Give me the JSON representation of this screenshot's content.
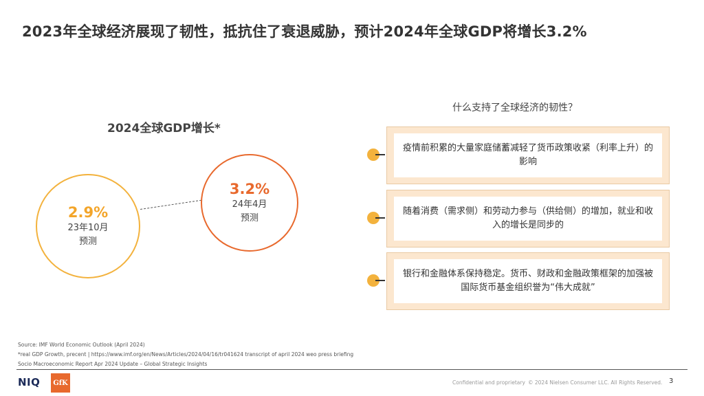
{
  "page": {
    "title": "2023年全球经济展现了韧性，抵抗住了衰退威胁，预计2024年全球GDP将增长3.2%"
  },
  "gdp_chart": {
    "title": "2024全球GDP增长*",
    "forecast_oct23": {
      "value": "2.9%",
      "label_line1": "23年10月",
      "label_line2": "预测"
    },
    "forecast_apr24": {
      "value": "3.2%",
      "label_line1": "24年4月",
      "label_line2": "预测"
    }
  },
  "resilience": {
    "title": "什么支持了全球经济的韧性？",
    "items": [
      {
        "text": "疫情前积累的大量家庭储蓄减轻了货币政策收紧（利率上升）的影响"
      },
      {
        "text": "随着消费（需求侧）和劳动力参与（供给侧）的增加，就业和收入的增长是同步的"
      },
      {
        "text": "银行和金融体系保持稳定。货币、财政和金融政策框架的加强被国际货币基金组织誉为“伟大成就”"
      }
    ]
  },
  "sources": {
    "line1": "Source: IMF World Economic Outlook (April 2024)",
    "line2": "*real GDP Growth, precent | https://www.imf.org/en/News/Articles/2024/04/16/tr041624 transcript of april 2024 weo press briefing",
    "line3": "Socio Macroeconomic Report Apr 2024 Update – Global Strategic Insights"
  },
  "footer": {
    "logo_niq": "NIQ",
    "logo_gfk": "GfK",
    "confidential": "Confidential and proprietary",
    "copyright": "© 2024 Nielsen Consumer LLC. All Rights Reserved.",
    "page_number": "3"
  },
  "colors": {
    "accent_orange": "#e8692d",
    "accent_yellow": "#f3b23d",
    "card_fill": "#fce7cf"
  }
}
